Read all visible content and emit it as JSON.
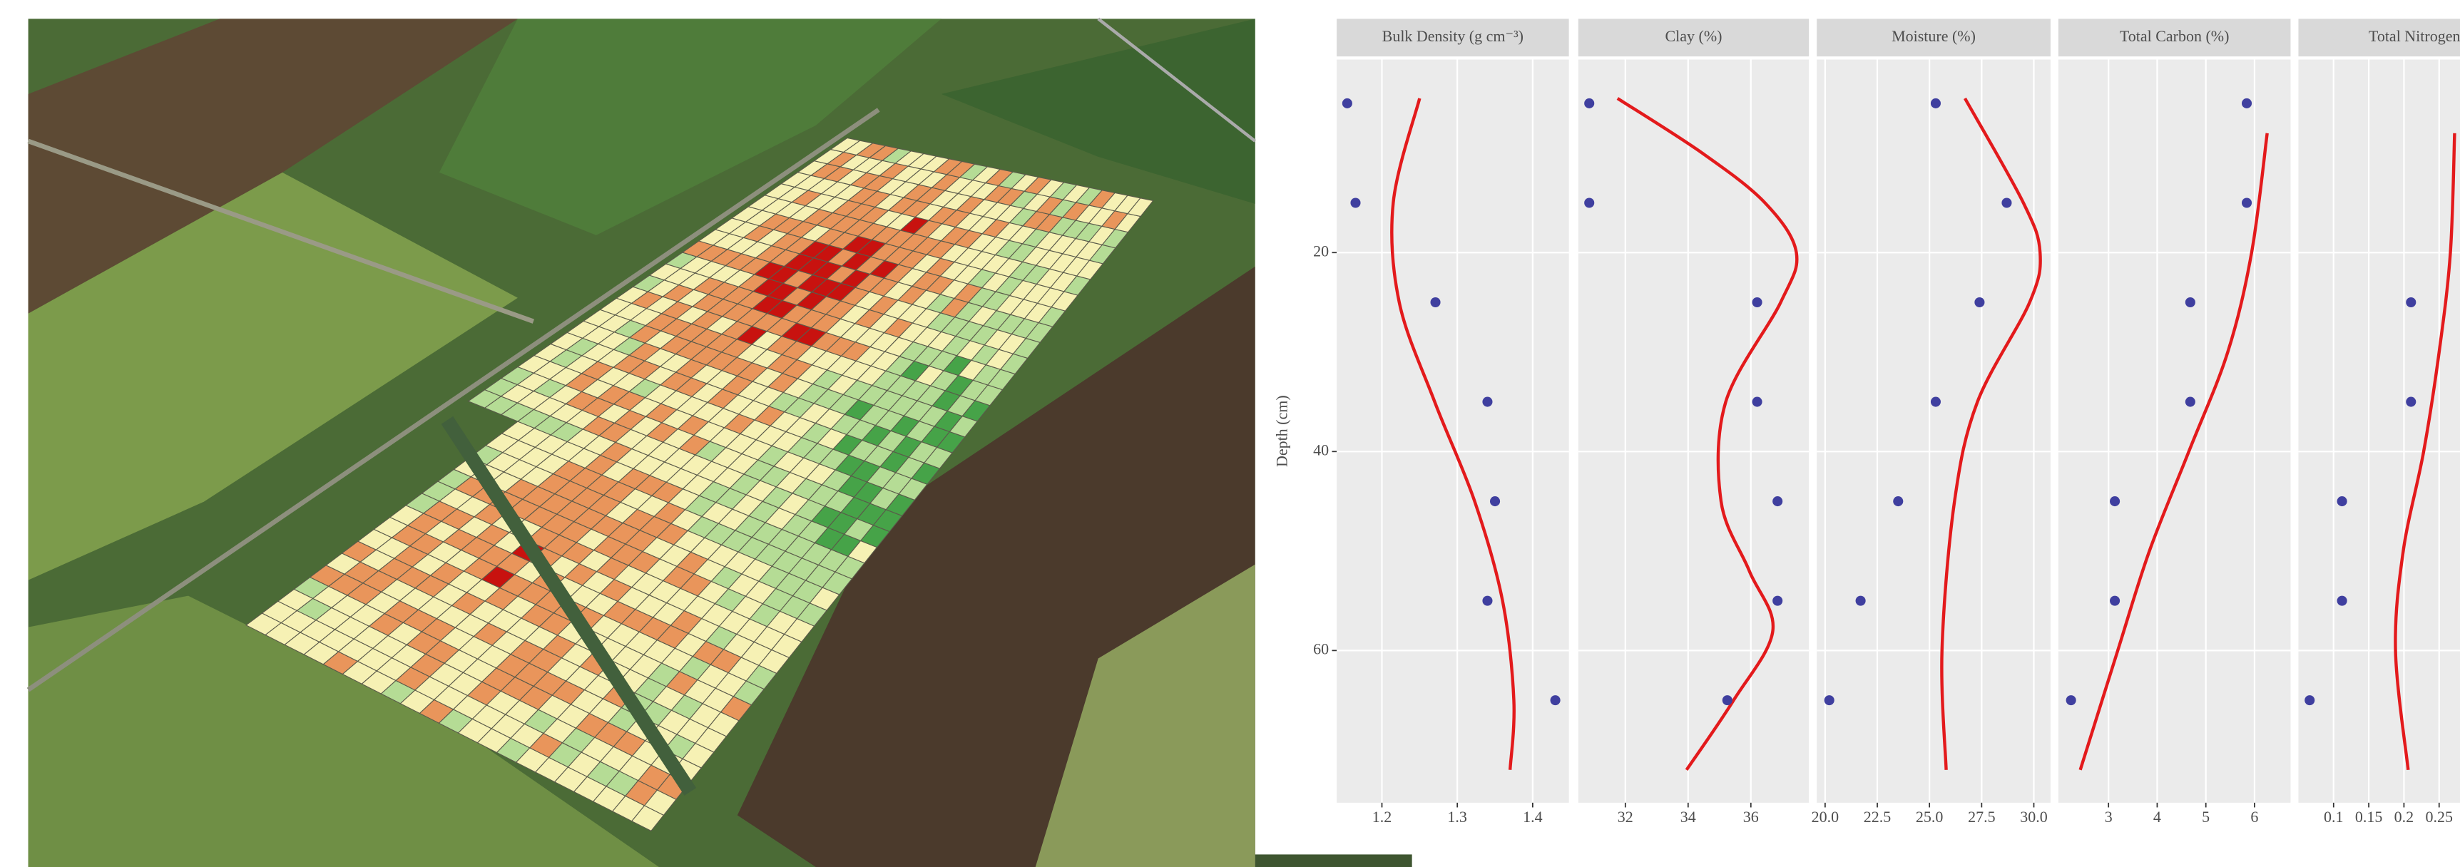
{
  "chart_data": [
    {
      "type": "scatter",
      "title": "Bulk Density (g cm⁻³)",
      "y_label": "Depth (cm)",
      "x": [
        1.154,
        1.165,
        1.271,
        1.34,
        1.35,
        1.34,
        1.43
      ],
      "y": [
        5,
        15,
        25,
        35,
        45,
        55,
        65
      ],
      "fit_x": [
        1.25,
        1.215,
        1.223,
        1.27,
        1.323,
        1.36,
        1.375,
        1.37
      ],
      "fit_y": [
        4.5,
        15,
        25,
        35,
        45,
        55,
        65,
        72
      ],
      "xlim": [
        1.14,
        1.448
      ],
      "xticks": [
        1.2,
        1.3,
        1.4
      ],
      "ylim": [
        75.3,
        0.6
      ],
      "yticks": [
        20,
        40,
        60
      ],
      "color": "#3f3f9f",
      "line_color": "#e31a1c",
      "grid": true
    },
    {
      "type": "scatter",
      "title": "Clay (%)",
      "x": [
        30.85,
        30.85,
        36.2,
        36.2,
        36.85,
        36.85,
        35.25
      ],
      "y": [
        5,
        15,
        25,
        35,
        45,
        55,
        65
      ],
      "fit_x": [
        31.75,
        34.45,
        36.45,
        37.45,
        36.95,
        35.2,
        35.05,
        35.95,
        36.7,
        35.45,
        33.95
      ],
      "fit_y": [
        4.5,
        10,
        15,
        20,
        25,
        35,
        45,
        52,
        58,
        65,
        72
      ],
      "xlim": [
        30.5,
        37.85
      ],
      "xticks": [
        32,
        34,
        36
      ],
      "ylim": [
        75.3,
        0.6
      ],
      "yticks": [
        20,
        40,
        60
      ],
      "color": "#3f3f9f",
      "line_color": "#e31a1c",
      "grid": true
    },
    {
      "type": "scatter",
      "title": "Moisture (%)",
      "x": [
        25.3,
        28.7,
        27.4,
        25.3,
        23.5,
        21.7,
        20.2
      ],
      "y": [
        5,
        15,
        25,
        35,
        45,
        55,
        65
      ],
      "fit_x": [
        26.7,
        29.5,
        30.3,
        29.8,
        27.3,
        26.2,
        25.6,
        25.8
      ],
      "fit_y": [
        4.5,
        15,
        20,
        25,
        35,
        45,
        60,
        72
      ],
      "xlim": [
        19.6,
        30.8
      ],
      "xticks": [
        {
          "value": 20,
          "label": "20.0"
        },
        22.5,
        {
          "value": 25,
          "label": "25.0"
        },
        27.5,
        {
          "value": 30,
          "label": "30.0"
        }
      ],
      "ylim": [
        75.3,
        0.6
      ],
      "yticks": [
        20,
        40,
        60
      ],
      "color": "#3f3f9f",
      "line_color": "#e31a1c",
      "grid": true
    },
    {
      "type": "scatter",
      "title": "Total Carbon (%)",
      "x": [
        5.84,
        5.84,
        4.68,
        4.68,
        3.13,
        3.13,
        2.23
      ],
      "y": [
        5,
        15,
        25,
        35,
        45,
        55,
        65
      ],
      "fit_x": [
        6.26,
        5.94,
        5.45,
        4.65,
        3.84,
        3.19,
        2.42
      ],
      "fit_y": [
        8,
        20,
        30,
        40,
        50,
        60,
        72
      ],
      "xlim": [
        1.97,
        6.74
      ],
      "xticks": [
        3,
        4,
        5,
        6
      ],
      "ylim": [
        75.3,
        0.6
      ],
      "yticks": [
        20,
        40,
        60
      ],
      "color": "#3f3f9f",
      "line_color": "#e31a1c",
      "grid": true
    },
    {
      "type": "scatter",
      "title": "Total Nitrogen",
      "x": [
        null,
        null,
        0.21,
        0.21,
        0.112,
        0.112,
        0.066
      ],
      "y": [
        5,
        15,
        25,
        35,
        45,
        55,
        65
      ],
      "fit_x": [
        0.272,
        0.266,
        0.25,
        0.228,
        0.199,
        0.188,
        0.206
      ],
      "fit_y": [
        8,
        20,
        30,
        40,
        50,
        60,
        72
      ],
      "xlim": [
        0.05,
        0.38
      ],
      "xticks": [
        0.1,
        0.15,
        0.2,
        0.25
      ],
      "ylim": [
        75.3,
        0.6
      ],
      "yticks": [
        20,
        40,
        60
      ],
      "color": "#3f3f9f",
      "line_color": "#e31a1c",
      "grid": true
    }
  ]
}
